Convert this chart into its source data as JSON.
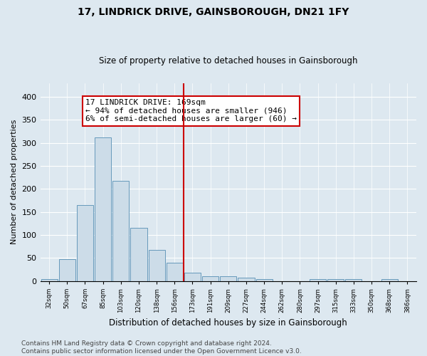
{
  "title": "17, LINDRICK DRIVE, GAINSBOROUGH, DN21 1FY",
  "subtitle": "Size of property relative to detached houses in Gainsborough",
  "xlabel": "Distribution of detached houses by size in Gainsborough",
  "ylabel": "Number of detached properties",
  "footnote1": "Contains HM Land Registry data © Crown copyright and database right 2024.",
  "footnote2": "Contains public sector information licensed under the Open Government Licence v3.0.",
  "categories": [
    "32sqm",
    "50sqm",
    "67sqm",
    "85sqm",
    "103sqm",
    "120sqm",
    "138sqm",
    "156sqm",
    "173sqm",
    "191sqm",
    "209sqm",
    "227sqm",
    "244sqm",
    "262sqm",
    "280sqm",
    "297sqm",
    "315sqm",
    "333sqm",
    "350sqm",
    "368sqm",
    "386sqm"
  ],
  "values": [
    5,
    47,
    165,
    312,
    218,
    115,
    68,
    40,
    18,
    10,
    10,
    7,
    4,
    0,
    0,
    4,
    4,
    4,
    0,
    4,
    0
  ],
  "bar_color": "#ccdce8",
  "bar_edge_color": "#6699bb",
  "vline_color": "#cc0000",
  "vline_index": 8,
  "annotation_text": "17 LINDRICK DRIVE: 169sqm\n← 94% of detached houses are smaller (946)\n6% of semi-detached houses are larger (60) →",
  "annotation_box_color": "#cc0000",
  "annotation_box_fill": "white",
  "ylim": [
    0,
    430
  ],
  "yticks": [
    0,
    50,
    100,
    150,
    200,
    250,
    300,
    350,
    400
  ],
  "bg_color": "#dde8f0",
  "plot_bg_color": "#dde8f0",
  "grid_color": "white",
  "title_fontsize": 10,
  "subtitle_fontsize": 8.5,
  "ylabel_fontsize": 8,
  "xlabel_fontsize": 8.5,
  "annot_fontsize": 8,
  "footnote_fontsize": 6.5
}
